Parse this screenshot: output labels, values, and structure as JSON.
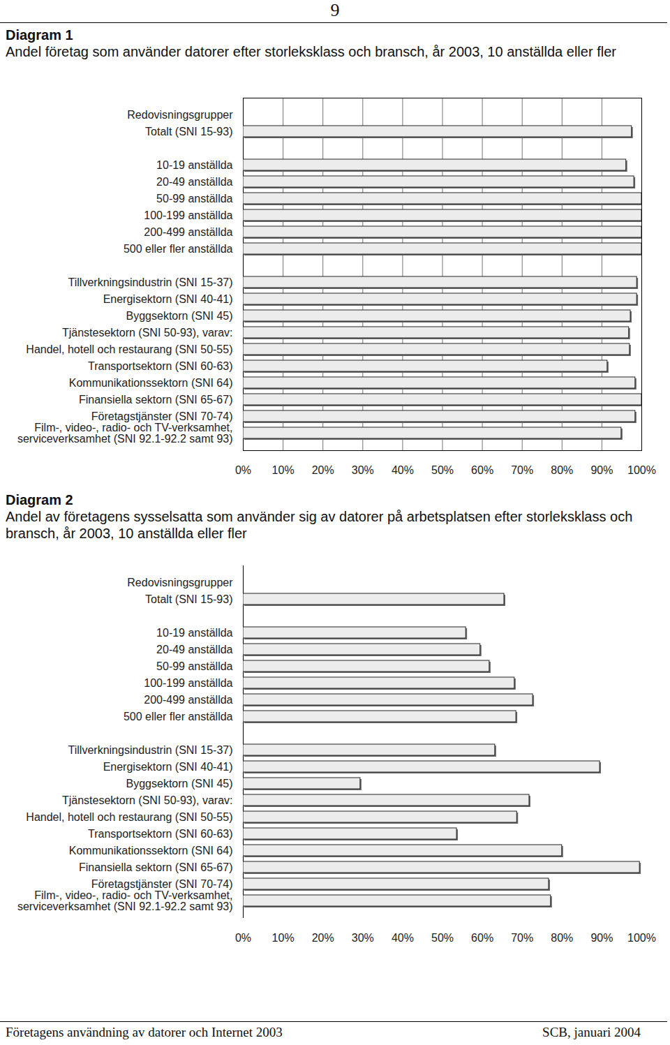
{
  "header": {
    "page": "9"
  },
  "chart_data": [
    {
      "type": "bar",
      "orientation": "horizontal",
      "title": "Diagram 1",
      "subtitle": "Andel företag som använder datorer efter storleksklass och bransch, år 2003, 10 anställda eller fler",
      "categories": [
        "Redovisningsgrupper",
        "Totalt (SNI 15-93)",
        null,
        "10-19 anställda",
        "20-49 anställda",
        "50-99 anställda",
        "100-199 anställda",
        "200-499 anställda",
        "500 eller fler anställda",
        null,
        "Tillverkningsindustrin (SNI 15-37)",
        "Energisektorn (SNI 40-41)",
        "Byggsektorn (SNI 45)",
        "Tjänstesektorn (SNI 50-93), varav:",
        "Handel, hotell och restaurang (SNI 50-55)",
        "Transportsektorn (SNI 60-63)",
        "Kommunikationssektorn (SNI 64)",
        "Finansiella sektorn (SNI 65-67)",
        "Företagstjänster (SNI 70-74)",
        "Film-, video-, radio- och TV-verksamhet,\nserviceverksamhet (SNI 92.1-92.2 samt 93)"
      ],
      "values": [
        null,
        97.5,
        null,
        96.1,
        98.1,
        100,
        100,
        100,
        100,
        null,
        98.8,
        98.8,
        97.2,
        96.8,
        97.0,
        91.4,
        98.4,
        100,
        98.4,
        94.9
      ],
      "color": "#ececec",
      "xlim": [
        0,
        100
      ],
      "xticks": [
        {
          "value": 0,
          "label": "0%"
        },
        {
          "value": 10,
          "label": "10%"
        },
        {
          "value": 20,
          "label": "20%"
        },
        {
          "value": 30,
          "label": "30%"
        },
        {
          "value": 40,
          "label": "40%"
        },
        {
          "value": 50,
          "label": "50%"
        },
        {
          "value": 60,
          "label": "60%"
        },
        {
          "value": 70,
          "label": "70%"
        },
        {
          "value": 80,
          "label": "80%"
        },
        {
          "value": 90,
          "label": "90%"
        },
        {
          "value": 100,
          "label": "100%"
        }
      ],
      "grid": true
    },
    {
      "type": "bar",
      "orientation": "horizontal",
      "title": "Diagram 2",
      "subtitle": "Andel av företagens sysselsatta som använder sig av datorer på arbetsplatsen efter storleksklass och bransch, år 2003, 10 anställda eller fler",
      "categories": [
        "Redovisningsgrupper",
        "Totalt (SNI 15-93)",
        null,
        "10-19 anställda",
        "20-49 anställda",
        "50-99 anställda",
        "100-199 anställda",
        "200-499 anställda",
        "500 eller fler anställda",
        null,
        "Tillverkningsindustrin (SNI 15-37)",
        "Energisektorn (SNI 40-41)",
        "Byggsektorn (SNI 45)",
        "Tjänstesektorn (SNI 50-93), varav:",
        "Handel, hotell och restaurang (SNI 50-55)",
        "Transportsektorn (SNI 60-63)",
        "Kommunikationssektorn (SNI 64)",
        "Finansiella sektorn (SNI 65-67)",
        "Företagstjänster (SNI 70-74)",
        "Film-, video-, radio- och TV-verksamhet,\nserviceverksamhet (SNI 92.1-92.2 samt 93)"
      ],
      "values": [
        null,
        65.5,
        null,
        55.9,
        59.5,
        61.8,
        68.1,
        72.7,
        68.5,
        null,
        63.2,
        89.5,
        29.4,
        71.8,
        68.7,
        53.6,
        80.0,
        99.5,
        76.7,
        77.2
      ],
      "color": "#ececec",
      "xlim": [
        0,
        100
      ],
      "xticks": [
        {
          "value": 0,
          "label": "0%"
        },
        {
          "value": 10,
          "label": "10%"
        },
        {
          "value": 20,
          "label": "20%"
        },
        {
          "value": 30,
          "label": "30%"
        },
        {
          "value": 40,
          "label": "40%"
        },
        {
          "value": 50,
          "label": "50%"
        },
        {
          "value": 60,
          "label": "60%"
        },
        {
          "value": 70,
          "label": "70%"
        },
        {
          "value": 80,
          "label": "80%"
        },
        {
          "value": 90,
          "label": "90%"
        },
        {
          "value": 100,
          "label": "100%"
        }
      ],
      "grid": false
    }
  ],
  "footer": {
    "left": "Företagens användning av datorer och Internet 2003",
    "right": "SCB, januari 2004"
  }
}
